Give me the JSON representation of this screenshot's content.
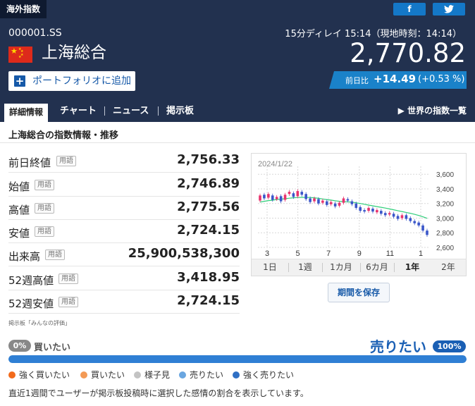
{
  "header": {
    "section_tab": "海外指数",
    "share_facebook": "f",
    "share_twitter": "🐦",
    "code": "000001.SS",
    "name": "上海総合",
    "portfolio_button": "ポートフォリオに追加",
    "delay_info": "15分ディレイ 15:14（現地時刻：14:14）",
    "price": "2,770.82",
    "change_label": "前日比",
    "change_value": "+14.49",
    "change_percent": "(+0.53 %)"
  },
  "tabs": {
    "items": [
      {
        "label": "詳細情報"
      },
      {
        "label": "チャート"
      },
      {
        "label": "ニュース"
      },
      {
        "label": "掲示板"
      }
    ],
    "world_link": "世界の指数一覧"
  },
  "section_title": "上海総合の指数情報・推移",
  "yougo_label": "用語",
  "stats": [
    {
      "label": "前日終値",
      "value": "2,756.33"
    },
    {
      "label": "始値",
      "value": "2,746.89"
    },
    {
      "label": "高値",
      "value": "2,775.56"
    },
    {
      "label": "安値",
      "value": "2,724.15"
    },
    {
      "label": "出来高",
      "value": "25,900,538,300"
    },
    {
      "label": "52週高値",
      "value": "3,418.95"
    },
    {
      "label": "52週安値",
      "value": "2,724.15"
    }
  ],
  "board_note": "掲示板「みんなの評価」",
  "chart": {
    "date_label": "2024/1/22",
    "periods": [
      "1日",
      "1週",
      "1カ月",
      "6カ月",
      "1年",
      "2年"
    ],
    "selected_period": "1年",
    "save_button": "期間を保存"
  },
  "chart_data": {
    "type": "candlestick",
    "xlabel": "",
    "ylabel": "",
    "x_tick_labels": [
      "3",
      "5",
      "7",
      "9",
      "11",
      "1"
    ],
    "y_tick_labels": [
      "3,600",
      "3,400",
      "3,200",
      "3,000",
      "2,800",
      "2,600"
    ],
    "ylim": [
      2600,
      3650
    ],
    "grid": true,
    "series": [
      {
        "kind": "candles",
        "values": [
          {
            "o": 3240,
            "c": 3310
          },
          {
            "o": 3320,
            "c": 3270
          },
          {
            "o": 3280,
            "c": 3330
          },
          {
            "o": 3310,
            "c": 3250
          },
          {
            "o": 3260,
            "c": 3290
          },
          {
            "o": 3300,
            "c": 3230
          },
          {
            "o": 3250,
            "c": 3320
          },
          {
            "o": 3330,
            "c": 3360
          },
          {
            "o": 3340,
            "c": 3290
          },
          {
            "o": 3300,
            "c": 3370
          },
          {
            "o": 3360,
            "c": 3320
          },
          {
            "o": 3330,
            "c": 3260
          },
          {
            "o": 3270,
            "c": 3220
          },
          {
            "o": 3230,
            "c": 3270
          },
          {
            "o": 3260,
            "c": 3200
          },
          {
            "o": 3210,
            "c": 3240
          },
          {
            "o": 3230,
            "c": 3180
          },
          {
            "o": 3190,
            "c": 3220
          },
          {
            "o": 3200,
            "c": 3160
          },
          {
            "o": 3170,
            "c": 3210
          },
          {
            "o": 3210,
            "c": 3270
          },
          {
            "o": 3260,
            "c": 3240
          },
          {
            "o": 3230,
            "c": 3190
          },
          {
            "o": 3200,
            "c": 3140
          },
          {
            "o": 3150,
            "c": 3100
          },
          {
            "o": 3110,
            "c": 3090
          },
          {
            "o": 3100,
            "c": 3140
          },
          {
            "o": 3130,
            "c": 3090
          },
          {
            "o": 3080,
            "c": 3110
          },
          {
            "o": 3100,
            "c": 3060
          },
          {
            "o": 3070,
            "c": 3040
          },
          {
            "o": 3050,
            "c": 3070
          },
          {
            "o": 3060,
            "c": 3020
          },
          {
            "o": 3030,
            "c": 2990
          },
          {
            "o": 3000,
            "c": 3040
          },
          {
            "o": 3040,
            "c": 2990
          },
          {
            "o": 3000,
            "c": 2960
          },
          {
            "o": 2960,
            "c": 2930
          },
          {
            "o": 2940,
            "c": 2900
          },
          {
            "o": 2900,
            "c": 2830
          },
          {
            "o": 2830,
            "c": 2770
          }
        ]
      },
      {
        "kind": "moving_average",
        "values": [
          3220,
          3230,
          3240,
          3245,
          3255,
          3260,
          3265,
          3272,
          3278,
          3282,
          3284,
          3284,
          3282,
          3278,
          3270,
          3262,
          3254,
          3246,
          3238,
          3230,
          3225,
          3222,
          3218,
          3210,
          3200,
          3190,
          3178,
          3168,
          3158,
          3148,
          3138,
          3126,
          3114,
          3102,
          3090,
          3078,
          3066,
          3052,
          3036,
          3018,
          2998
        ]
      }
    ]
  },
  "sentiment": {
    "buy_percent": "0%",
    "buy_label": "買いたい",
    "sell_label": "売りたい",
    "sell_percent": "100%",
    "sell_fraction": 1.0,
    "legend": [
      {
        "label": "強く買いたい",
        "color": "#f26a1b"
      },
      {
        "label": "買いたい",
        "color": "#f39a56"
      },
      {
        "label": "様子見",
        "color": "#c3c3c3"
      },
      {
        "label": "売りたい",
        "color": "#6aa6e0"
      },
      {
        "label": "強く売りたい",
        "color": "#2f6fc4"
      }
    ],
    "footnote": "直近1週間でユーザーが掲示板投稿時に選択した感情の割合を表示しています。"
  }
}
